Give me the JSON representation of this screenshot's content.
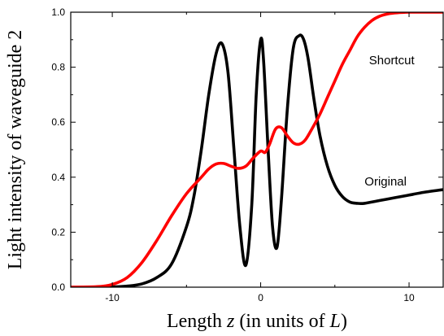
{
  "chart_data": {
    "type": "line",
    "title": "",
    "xlabel": {
      "prefix": "Length ",
      "var": "z",
      "mid": " (in units of ",
      "unit": "L",
      "suffix": ")"
    },
    "ylabel": "Light intensity of waveguide 2",
    "xlim": [
      -12.8,
      12.3
    ],
    "ylim": [
      0,
      1.0
    ],
    "x_major_ticks": [
      -10,
      0,
      10
    ],
    "x_tick_labels": [
      "-10",
      "0",
      "10"
    ],
    "x_minor_ticks": [
      -5,
      5
    ],
    "y_major_ticks": [
      0.0,
      0.2,
      0.4,
      0.6,
      0.8,
      1.0
    ],
    "y_tick_labels": [
      "0.0",
      "0.2",
      "0.4",
      "0.6",
      "0.8",
      "1.0"
    ],
    "y_minor_ticks": [
      0.1,
      0.3,
      0.5,
      0.7,
      0.9
    ],
    "grid": false,
    "series": [
      {
        "name": "Original",
        "color": "#000000",
        "x": [
          -12.8,
          -11,
          -10,
          -9,
          -8,
          -7,
          -6,
          -5,
          -4.5,
          -4,
          -3.5,
          -3,
          -2.6,
          -2.2,
          -1.8,
          -1.4,
          -1.0,
          -0.6,
          -0.3,
          0.0,
          0.2,
          0.5,
          0.8,
          1.1,
          1.4,
          1.8,
          2.2,
          2.6,
          2.9,
          3.2,
          3.6,
          4.0,
          4.5,
          5.0,
          5.5,
          6.0,
          6.5,
          7.0,
          8.0,
          9.0,
          10.0,
          11.0,
          12.3
        ],
        "y": [
          0.0,
          0.0,
          0.001,
          0.004,
          0.012,
          0.035,
          0.085,
          0.22,
          0.33,
          0.5,
          0.7,
          0.85,
          0.885,
          0.78,
          0.5,
          0.22,
          0.08,
          0.3,
          0.7,
          0.9,
          0.82,
          0.5,
          0.22,
          0.145,
          0.32,
          0.65,
          0.87,
          0.915,
          0.9,
          0.83,
          0.68,
          0.55,
          0.44,
          0.37,
          0.33,
          0.31,
          0.305,
          0.305,
          0.315,
          0.325,
          0.335,
          0.345,
          0.355
        ]
      },
      {
        "name": "Shortcut",
        "color": "#ff0000",
        "x": [
          -12.8,
          -11,
          -10,
          -9,
          -8,
          -7,
          -6,
          -5,
          -4,
          -3.5,
          -3,
          -2.5,
          -2,
          -1.5,
          -1,
          -0.5,
          0.0,
          0.3,
          0.6,
          1.0,
          1.4,
          1.8,
          2.2,
          2.6,
          3.0,
          3.5,
          4.0,
          4.5,
          5.0,
          5.5,
          6.0,
          6.5,
          7.0,
          7.5,
          8.0,
          8.5,
          9.0,
          9.5,
          10.0,
          11.0,
          12.3
        ],
        "y": [
          0.0,
          0.002,
          0.01,
          0.035,
          0.09,
          0.17,
          0.26,
          0.34,
          0.4,
          0.43,
          0.448,
          0.45,
          0.44,
          0.432,
          0.44,
          0.47,
          0.495,
          0.49,
          0.52,
          0.575,
          0.58,
          0.55,
          0.525,
          0.52,
          0.535,
          0.58,
          0.63,
          0.69,
          0.75,
          0.81,
          0.86,
          0.91,
          0.945,
          0.97,
          0.985,
          0.993,
          0.997,
          0.999,
          1.0,
          1.0,
          1.0
        ]
      }
    ],
    "annotations": [
      {
        "text": "Shortcut",
        "x": 7.3,
        "y": 0.81
      },
      {
        "text": "Original",
        "x": 7.0,
        "y": 0.37
      }
    ]
  }
}
